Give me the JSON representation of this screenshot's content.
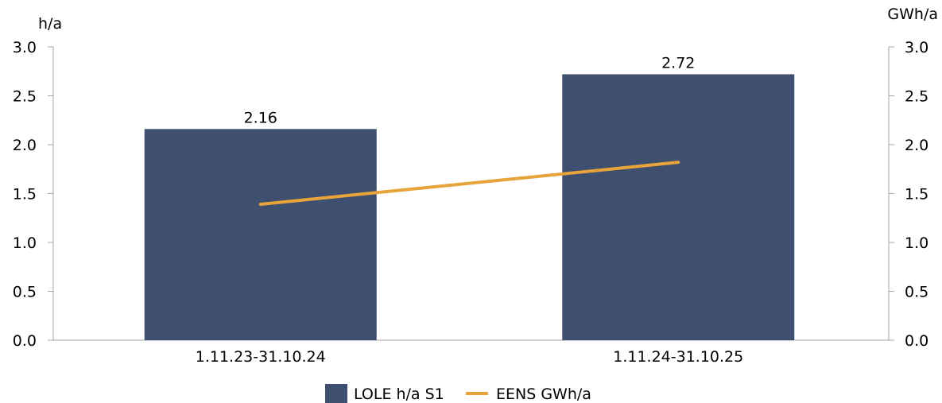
{
  "chart_data": {
    "type": "bar",
    "categories": [
      "1.11.23-31.10.24",
      "1.11.24-31.10.25"
    ],
    "series": [
      {
        "name": "LOLE h/a S1",
        "type": "bar",
        "axis": "left",
        "values": [
          2.16,
          2.72
        ],
        "color": "#3f4f6f",
        "data_labels": [
          "2.16",
          "2.72"
        ]
      },
      {
        "name": "EENS GWh/a",
        "type": "line",
        "axis": "right",
        "values": [
          1.39,
          1.82
        ],
        "color": "#e8a33a"
      }
    ],
    "y_left": {
      "unit": "h/a",
      "min": 0,
      "max": 3.0,
      "ticks": [
        "0.0",
        "0.5",
        "1.0",
        "1.5",
        "2.0",
        "2.5",
        "3.0"
      ]
    },
    "y_right": {
      "unit": "GWh/a",
      "min": 0,
      "max": 3.0,
      "ticks": [
        "0.0",
        "0.5",
        "1.0",
        "1.5",
        "2.0",
        "2.5",
        "3.0"
      ]
    },
    "legend": {
      "placement": "bottom-center"
    },
    "grid": false
  }
}
